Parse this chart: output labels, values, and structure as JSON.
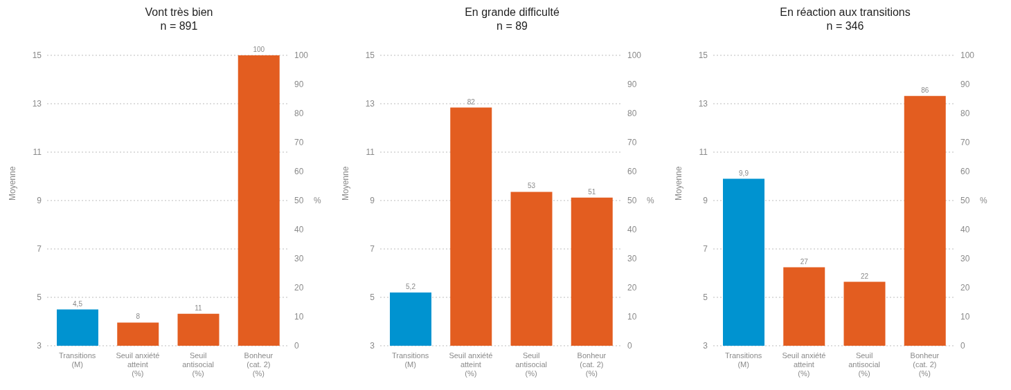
{
  "chart_data": [
    {
      "type": "bar",
      "title": "Vont très bien",
      "subtitle": "n = 891",
      "ylabel": "Moyenne",
      "y2label": "%",
      "categories": [
        "Transitions (M)",
        "Seuil anxiété atteint (%)",
        "Seuil antisocial (%)",
        "Bonheur (cat. 2) (%)"
      ],
      "series": [
        {
          "color": "#0093d0",
          "values": [
            4.5,
            null,
            null,
            null
          ],
          "value_labels": [
            "4,5",
            null,
            null,
            null
          ]
        },
        {
          "color": "#e35d20",
          "axis": "y2",
          "values": [
            null,
            8,
            11,
            100
          ],
          "value_labels": [
            null,
            "8",
            "11",
            "100"
          ]
        }
      ],
      "ylim": [
        3,
        15
      ],
      "yticks": [
        3,
        5,
        7,
        9,
        11,
        13,
        15
      ],
      "y2lim": [
        0,
        100
      ],
      "y2ticks": [
        0,
        10,
        20,
        30,
        40,
        50,
        60,
        70,
        80,
        90,
        100
      ],
      "grid": "y",
      "legend": false
    },
    {
      "type": "bar",
      "title": "En grande difficulté",
      "subtitle": "n = 89",
      "ylabel": "Moyenne",
      "y2label": "%",
      "categories": [
        "Transitions (M)",
        "Seuil anxiété atteint (%)",
        "Seuil antisocial (%)",
        "Bonheur (cat. 2) (%)"
      ],
      "series": [
        {
          "color": "#0093d0",
          "values": [
            5.2,
            null,
            null,
            null
          ],
          "value_labels": [
            "5,2",
            null,
            null,
            null
          ]
        },
        {
          "color": "#e35d20",
          "axis": "y2",
          "values": [
            null,
            82,
            53,
            51
          ],
          "value_labels": [
            null,
            "82",
            "53",
            "51"
          ]
        }
      ],
      "ylim": [
        3,
        15
      ],
      "yticks": [
        3,
        5,
        7,
        9,
        11,
        13,
        15
      ],
      "y2lim": [
        0,
        100
      ],
      "y2ticks": [
        0,
        10,
        20,
        30,
        40,
        50,
        60,
        70,
        80,
        90,
        100
      ],
      "grid": "y",
      "legend": false
    },
    {
      "type": "bar",
      "title": "En réaction aux transitions",
      "subtitle": "n = 346",
      "ylabel": "Moyenne",
      "y2label": "%",
      "categories": [
        "Transitions (M)",
        "Seuil anxiété atteint (%)",
        "Seuil antisocial (%)",
        "Bonheur (cat. 2) (%)"
      ],
      "series": [
        {
          "color": "#0093d0",
          "values": [
            9.9,
            null,
            null,
            null
          ],
          "value_labels": [
            "9,9",
            null,
            null,
            null
          ]
        },
        {
          "color": "#e35d20",
          "axis": "y2",
          "values": [
            null,
            27,
            22,
            86
          ],
          "value_labels": [
            null,
            "27",
            "22",
            "86"
          ]
        }
      ],
      "ylim": [
        3,
        15
      ],
      "yticks": [
        3,
        5,
        7,
        9,
        11,
        13,
        15
      ],
      "y2lim": [
        0,
        100
      ],
      "y2ticks": [
        0,
        10,
        20,
        30,
        40,
        50,
        60,
        70,
        80,
        90,
        100
      ],
      "grid": "y",
      "legend": false
    }
  ]
}
